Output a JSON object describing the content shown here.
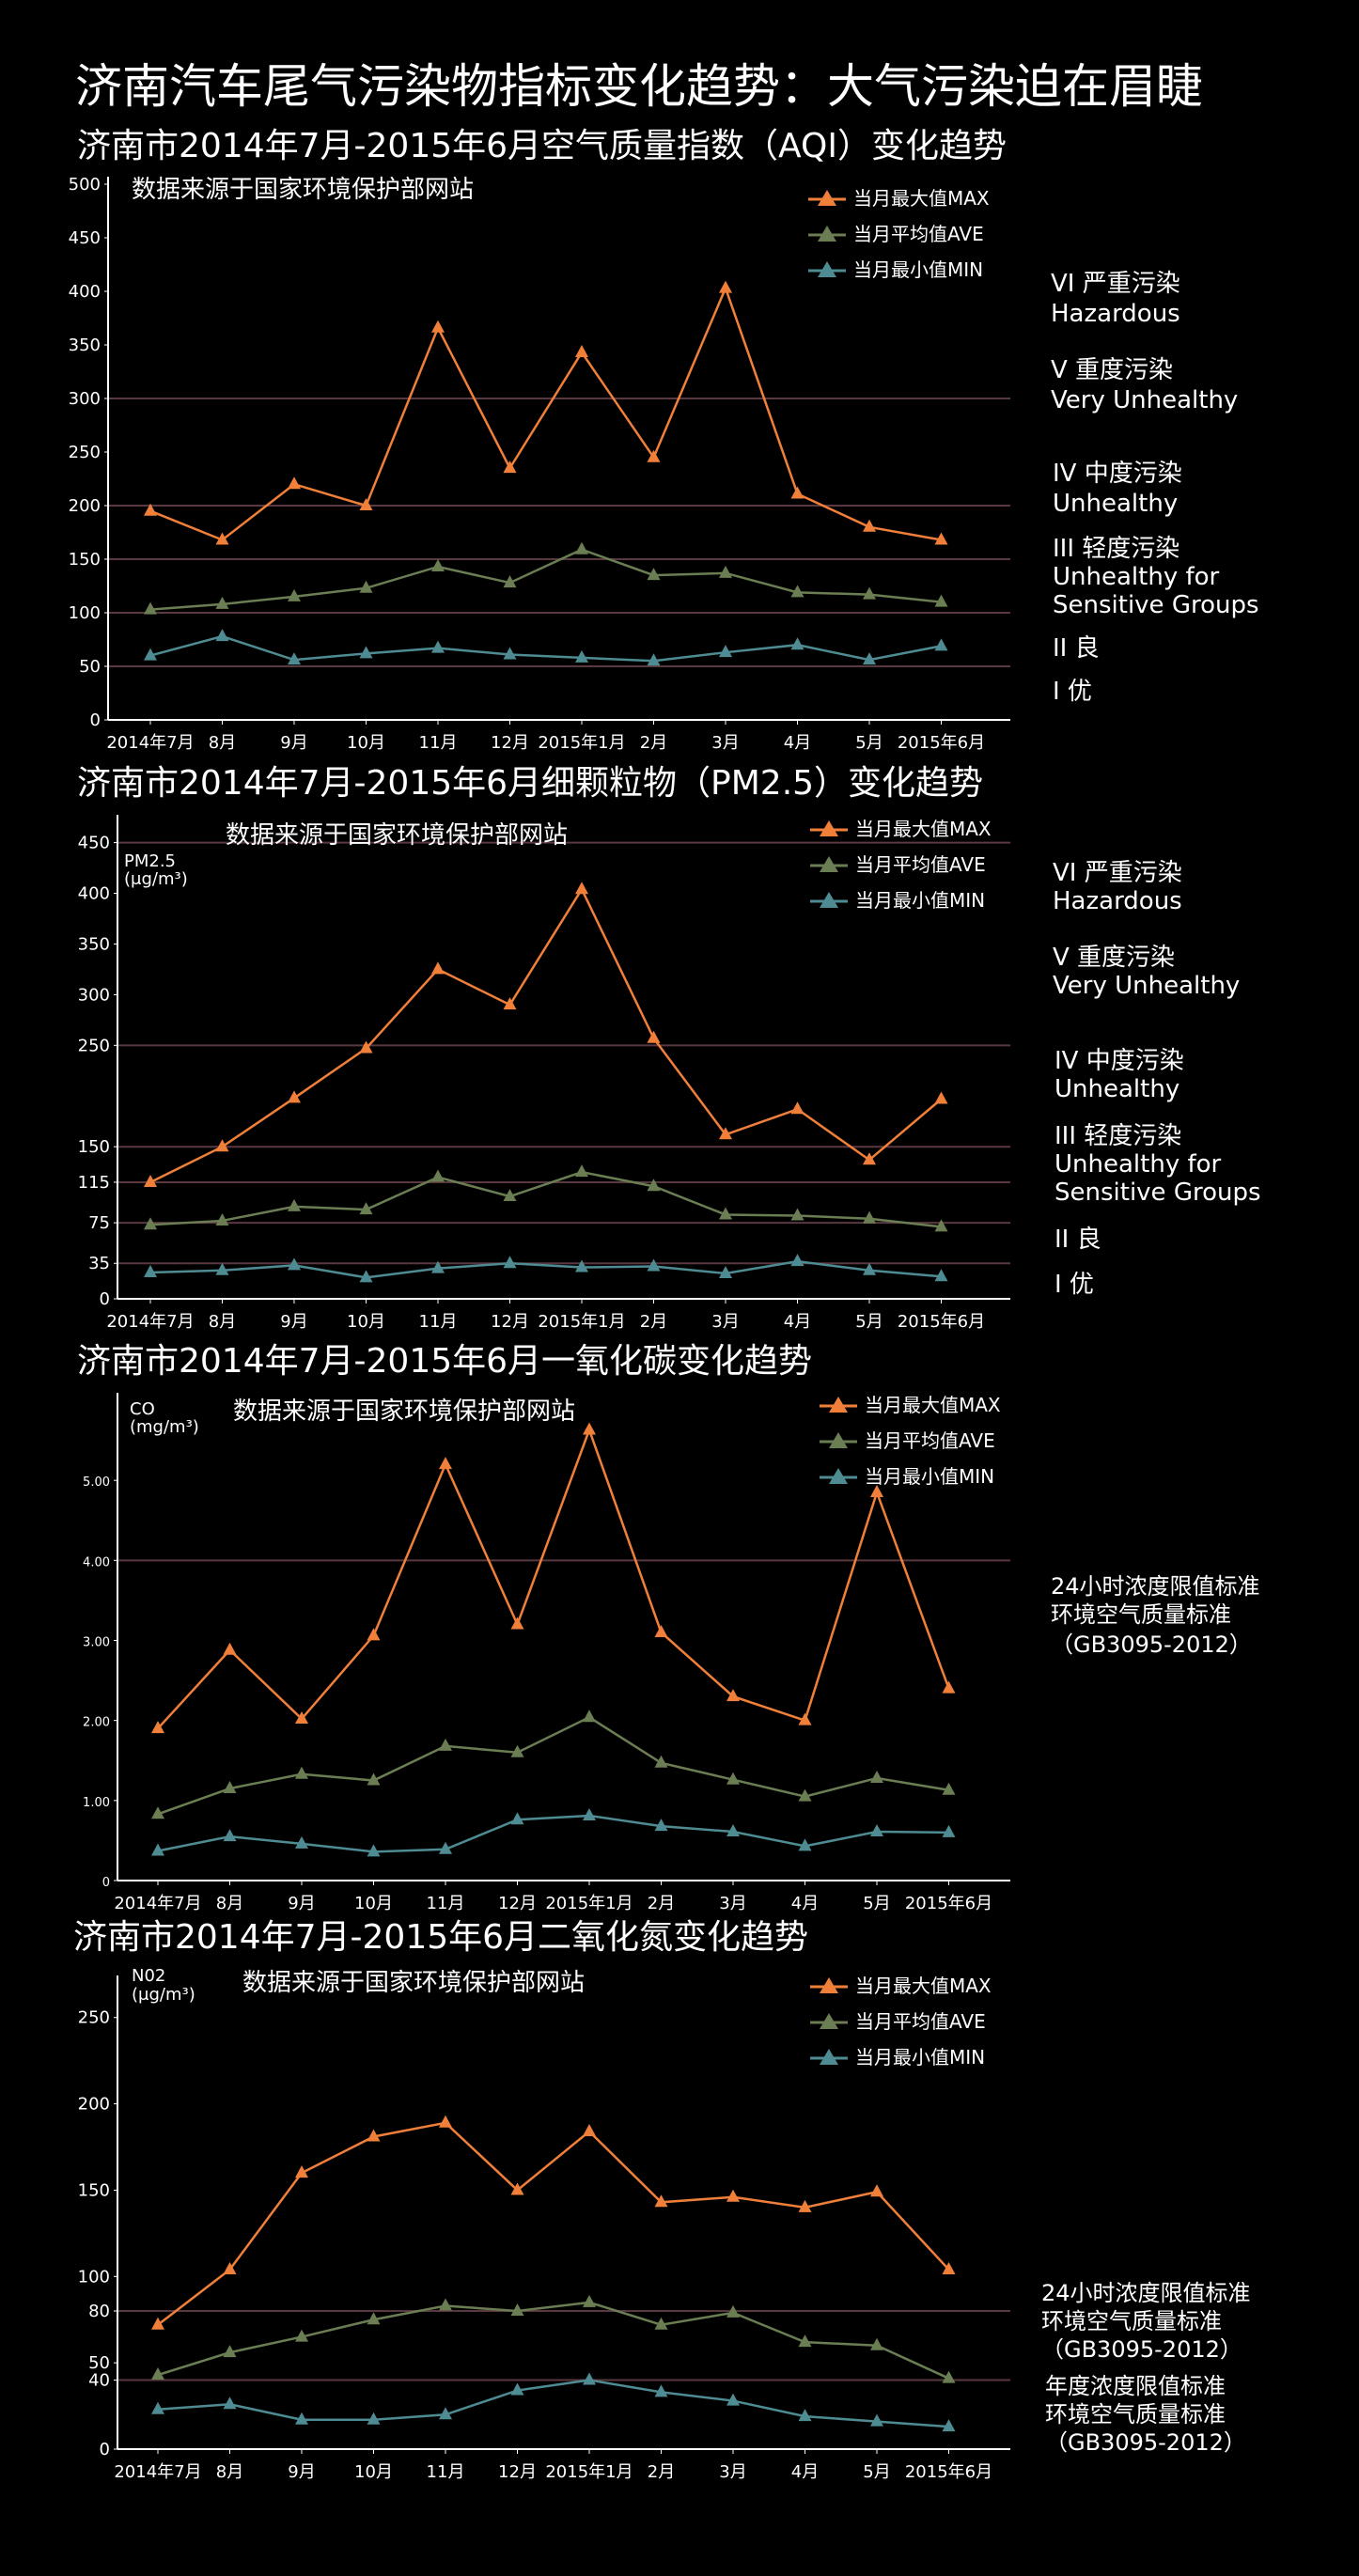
{
  "main_title": "济南汽车尾气污染物指标变化趋势：大气污染迫在眉睫",
  "colors": {
    "max": "#f07f3a",
    "ave": "#6b7d52",
    "min": "#4e8b92",
    "grid": "#5a3840",
    "axis": "#ffffff",
    "background": "#000000"
  },
  "chart_data": [
    {
      "type": "line",
      "title": "济南市2014年7月-2015年6月空气质量指数（AQI）变化趋势",
      "source": "数据来源于国家环境保护部网站",
      "ylabel": "",
      "categories": [
        "2014年7月",
        "8月",
        "9月",
        "10月",
        "11月",
        "12月",
        "2015年1月",
        "2月",
        "3月",
        "4月",
        "5月",
        "2015年6月"
      ],
      "yticks": [
        "0",
        "50",
        "100",
        "150",
        "200",
        "250",
        "300",
        "350",
        "400",
        "450",
        "500"
      ],
      "ylim": [
        0,
        500
      ],
      "gridlines": [
        50,
        100,
        150,
        200,
        300
      ],
      "series": [
        {
          "name": "当月最大值MAX",
          "key": "max",
          "values": [
            195,
            168,
            220,
            200,
            366,
            235,
            343,
            245,
            403,
            211,
            180,
            168
          ]
        },
        {
          "name": "当月平均值AVE",
          "key": "ave",
          "values": [
            103,
            108,
            115,
            123,
            143,
            128,
            159,
            135,
            137,
            119,
            117,
            110
          ]
        },
        {
          "name": "当月最小值MIN",
          "key": "min",
          "values": [
            60,
            78,
            56,
            62,
            67,
            61,
            58,
            55,
            63,
            70,
            56,
            69
          ]
        }
      ],
      "annotations": [
        "VI 严重污染",
        "Hazardous",
        "V  重度污染",
        "Very Unhealthy",
        "IV 中度污染",
        "Unhealthy",
        "III 轻度污染",
        "Unhealthy for",
        "Sensitive Groups",
        "II 良",
        "I  优"
      ]
    },
    {
      "type": "line",
      "title": "济南市2014年7月-2015年6月细颗粒物（PM2.5）变化趋势",
      "source": "数据来源于国家环境保护部网站",
      "ylabel": "PM2.5 (μg/m³)",
      "categories": [
        "2014年7月",
        "8月",
        "9月",
        "10月",
        "11月",
        "12月",
        "2015年1月",
        "2月",
        "3月",
        "4月",
        "5月",
        "2015年6月"
      ],
      "yticks": [
        "0",
        "35",
        "75",
        "115",
        "150",
        "250",
        "300",
        "350",
        "400",
        "450"
      ],
      "ylim": [
        0,
        470
      ],
      "gridlines": [
        35,
        75,
        115,
        150,
        250,
        450
      ],
      "series": [
        {
          "name": "当月最大值MAX",
          "key": "max",
          "values": [
            115,
            150,
            198,
            247,
            325,
            290,
            404,
            257,
            162,
            187,
            137,
            197
          ]
        },
        {
          "name": "当月平均值AVE",
          "key": "ave",
          "values": [
            73,
            77,
            91,
            88,
            120,
            101,
            125,
            111,
            83,
            82,
            79,
            71
          ]
        },
        {
          "name": "当月最小值MIN",
          "key": "min",
          "values": [
            26,
            28,
            33,
            21,
            30,
            35,
            31,
            32,
            25,
            37,
            28,
            22
          ]
        }
      ],
      "annotations": [
        "VI 严重污染",
        "Hazardous",
        "V  重度污染",
        "Very Unhealthy",
        "IV 中度污染",
        "Unhealthy",
        "III 轻度污染",
        "Unhealthy for",
        "Sensitive Groups",
        "II 良",
        "I  优"
      ]
    },
    {
      "type": "line",
      "title": "济南市2014年7月-2015年6月一氧化碳变化趋势",
      "source": "数据来源于国家环境保护部网站",
      "ylabel": "CO (mg/m³)",
      "categories": [
        "2014年7月",
        "8月",
        "9月",
        "10月",
        "11月",
        "12月",
        "2015年1月",
        "2月",
        "3月",
        "4月",
        "5月",
        "2015年6月"
      ],
      "yticks": [
        "0",
        "1.00",
        "2.00",
        "3.00",
        "4.00",
        "5.00"
      ],
      "ylim": [
        0,
        6
      ],
      "gridlines": [
        4
      ],
      "series": [
        {
          "name": "当月最大值MAX",
          "key": "max",
          "values": [
            1.9,
            2.88,
            2.02,
            3.06,
            5.2,
            3.2,
            5.63,
            3.1,
            2.3,
            2.0,
            4.85,
            2.4
          ]
        },
        {
          "name": "当月平均值AVE",
          "key": "ave",
          "values": [
            0.83,
            1.15,
            1.33,
            1.25,
            1.68,
            1.6,
            2.04,
            1.47,
            1.26,
            1.05,
            1.28,
            1.13
          ]
        },
        {
          "name": "当月最小值MIN",
          "key": "min",
          "values": [
            0.37,
            0.55,
            0.46,
            0.36,
            0.39,
            0.76,
            0.81,
            0.68,
            0.61,
            0.43,
            0.61,
            0.6
          ]
        }
      ],
      "annotations": [
        "24小时浓度限值标准",
        "环境空气质量标准",
        "（GB3095-2012）"
      ]
    },
    {
      "type": "line",
      "title": "济南市2014年7月-2015年6月二氧化氮变化趋势",
      "source": "数据来源于国家环境保护部网站",
      "ylabel": "N02 (μg/m³)",
      "categories": [
        "2014年7月",
        "8月",
        "9月",
        "10月",
        "11月",
        "12月",
        "2015年1月",
        "2月",
        "3月",
        "4月",
        "5月",
        "2015年6月"
      ],
      "yticks": [
        "0",
        "40",
        "50",
        "80",
        "100",
        "150",
        "200",
        "250"
      ],
      "ylim": [
        0,
        270
      ],
      "gridlines": [
        40,
        80
      ],
      "series": [
        {
          "name": "当月最大值MAX",
          "key": "max",
          "values": [
            72,
            104,
            160,
            181,
            189,
            150,
            184,
            143,
            146,
            140,
            149,
            104
          ]
        },
        {
          "name": "当月平均值AVE",
          "key": "ave",
          "values": [
            43,
            56,
            65,
            75,
            83,
            80,
            85,
            72,
            79,
            62,
            60,
            41
          ]
        },
        {
          "name": "当月最小值MIN",
          "key": "min",
          "values": [
            23,
            26,
            17,
            17,
            20,
            34,
            40,
            33,
            28,
            19,
            16,
            13
          ]
        }
      ],
      "annotations": [
        "24小时浓度限值标准",
        "环境空气质量标准",
        "（GB3095-2012）",
        "年度浓度限值标准",
        "环境空气质量标准",
        "（GB3095-2012）"
      ]
    }
  ]
}
